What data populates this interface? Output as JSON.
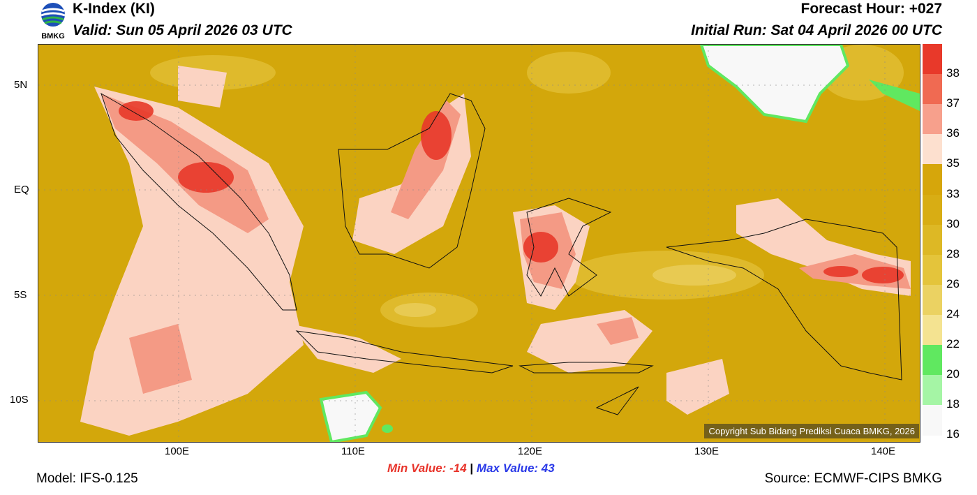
{
  "header": {
    "title": "K-Index (KI)",
    "valid": "Valid: Sun 05 April 2026 03 UTC",
    "forecast_hour": "Forecast Hour: +027",
    "initial_run": "Initial Run: Sat 04 April 2026 00 UTC"
  },
  "logo": {
    "text": "BMKG"
  },
  "map": {
    "lat_labels": [
      "5N",
      "EQ",
      "5S",
      "10S"
    ],
    "lon_labels": [
      "100E",
      "110E",
      "120E",
      "130E",
      "140E"
    ],
    "copyright": "Copyright Sub Bidang Prediksi Cuaca BMKG, 2026"
  },
  "colorbar": {
    "labels": [
      "38",
      "37",
      "36",
      "35",
      "33",
      "30",
      "28",
      "26",
      "24",
      "22",
      "20",
      "18",
      "16"
    ],
    "colors": [
      "#e8392a",
      "#f06a52",
      "#f7a08c",
      "#fde0cf",
      "#d6a60b",
      "#d8ad14",
      "#ddb825",
      "#e4c43b",
      "#ebd262",
      "#f4e391",
      "#60e860",
      "#a5f5a5",
      "#f8f8f8"
    ]
  },
  "stats": {
    "min_label": "Min Value: -14",
    "separator": "|",
    "max_label": "Max Value:  43"
  },
  "footer": {
    "model": "Model: IFS-0.125",
    "source": "Source: ECMWF-CIPS BMKG"
  }
}
